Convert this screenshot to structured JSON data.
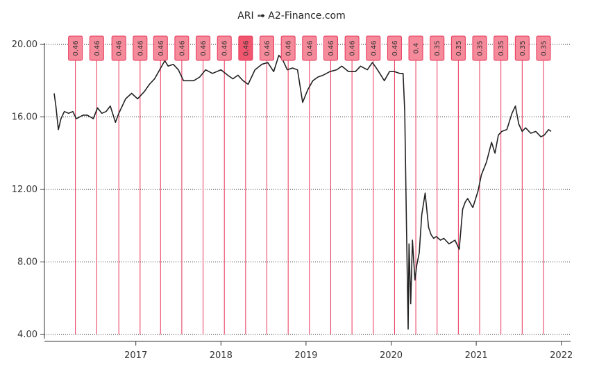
{
  "chart_data": {
    "type": "line",
    "title": "ARI ➟ A2-Finance.com",
    "y_ticks": [
      "4.00",
      "8.00",
      "12.00",
      "16.00",
      "20.00"
    ],
    "x_ticks": [
      "2017",
      "2018",
      "2019",
      "2020",
      "2021",
      "2022"
    ],
    "ylim": [
      4,
      20
    ],
    "xlim": [
      2016.04,
      2022.08
    ],
    "grid": "horizontal dotted",
    "line_color": "#222222",
    "dividend_line_color": "#e8345a",
    "dividend_box_color": "#f48a9a",
    "dividend_box_highlight_color": "#f0566e",
    "series": [
      {
        "x": [
          2016.04,
          2016.06,
          2016.09,
          2016.12,
          2016.16,
          2016.21,
          2016.26,
          2016.3,
          2016.38,
          2016.43,
          2016.5,
          2016.55,
          2016.6,
          2016.65,
          2016.7,
          2016.76,
          2016.8,
          2016.88,
          2016.95,
          2017.02,
          2017.1,
          2017.16,
          2017.22,
          2017.28,
          2017.34,
          2017.38,
          2017.44,
          2017.5,
          2017.56,
          2017.62,
          2017.68,
          2017.75,
          2017.82,
          2017.9,
          2018.0,
          2018.08,
          2018.14,
          2018.2,
          2018.26,
          2018.32,
          2018.4,
          2018.48,
          2018.55,
          2018.62,
          2018.68,
          2018.72,
          2018.78,
          2018.84,
          2018.9,
          2018.96,
          2019.02,
          2019.08,
          2019.14,
          2019.2,
          2019.28,
          2019.36,
          2019.42,
          2019.5,
          2019.58,
          2019.64,
          2019.72,
          2019.78,
          2019.84,
          2019.92,
          2019.98,
          2020.04,
          2020.1,
          2020.14,
          2020.16,
          2020.18,
          2020.2,
          2020.21,
          2020.23,
          2020.25,
          2020.28,
          2020.3,
          2020.33,
          2020.36,
          2020.4,
          2020.44,
          2020.47,
          2020.5,
          2020.53,
          2020.58,
          2020.62,
          2020.68,
          2020.75,
          2020.8,
          2020.84,
          2020.87,
          2020.9,
          2020.96,
          2021.02,
          2021.06,
          2021.12,
          2021.18,
          2021.22,
          2021.26,
          2021.3,
          2021.36,
          2021.42,
          2021.46,
          2021.5,
          2021.54,
          2021.58,
          2021.64,
          2021.7,
          2021.76,
          2021.8,
          2021.85,
          2021.88
        ],
        "y": [
          17.3,
          16.6,
          15.3,
          15.9,
          16.3,
          16.2,
          16.3,
          15.9,
          16.1,
          16.1,
          15.9,
          16.5,
          16.2,
          16.3,
          16.6,
          15.7,
          16.2,
          17.0,
          17.3,
          17.0,
          17.4,
          17.8,
          18.1,
          18.6,
          19.1,
          18.8,
          18.9,
          18.6,
          18.0,
          18.0,
          18.0,
          18.2,
          18.6,
          18.4,
          18.6,
          18.3,
          18.1,
          18.3,
          18.0,
          17.8,
          18.6,
          18.9,
          19.0,
          18.5,
          19.4,
          19.2,
          18.6,
          18.7,
          18.6,
          16.8,
          17.5,
          18.0,
          18.2,
          18.3,
          18.5,
          18.6,
          18.8,
          18.5,
          18.5,
          18.8,
          18.6,
          19.0,
          18.6,
          18.0,
          18.5,
          18.5,
          18.4,
          18.4,
          16.3,
          10.0,
          4.3,
          9.0,
          5.7,
          9.2,
          7.0,
          7.8,
          8.5,
          10.6,
          11.8,
          9.9,
          9.5,
          9.3,
          9.4,
          9.2,
          9.3,
          9.0,
          9.2,
          8.7,
          10.9,
          11.3,
          11.5,
          11.0,
          11.9,
          12.8,
          13.5,
          14.6,
          14.0,
          15.0,
          15.2,
          15.3,
          16.2,
          16.6,
          15.6,
          15.2,
          15.4,
          15.1,
          15.2,
          14.9,
          15.0,
          15.3,
          15.2
        ]
      }
    ],
    "dividends": [
      {
        "x": 2016.29,
        "label": "0.46"
      },
      {
        "x": 2016.54,
        "label": "0.46"
      },
      {
        "x": 2016.8,
        "label": "0.46"
      },
      {
        "x": 2017.05,
        "label": "0.46"
      },
      {
        "x": 2017.29,
        "label": "0.46"
      },
      {
        "x": 2017.54,
        "label": "0.46"
      },
      {
        "x": 2017.79,
        "label": "0.46"
      },
      {
        "x": 2018.04,
        "label": "0.46"
      },
      {
        "x": 2018.29,
        "label": "0.46",
        "highlight": true
      },
      {
        "x": 2018.54,
        "label": "0.46"
      },
      {
        "x": 2018.79,
        "label": "0.46"
      },
      {
        "x": 2019.04,
        "label": "0.46"
      },
      {
        "x": 2019.29,
        "label": "0.46"
      },
      {
        "x": 2019.54,
        "label": "0.46"
      },
      {
        "x": 2019.79,
        "label": "0.46"
      },
      {
        "x": 2020.04,
        "label": "0.46"
      },
      {
        "x": 2020.29,
        "label": "0.4"
      },
      {
        "x": 2020.54,
        "label": "0.35"
      },
      {
        "x": 2020.79,
        "label": "0.35"
      },
      {
        "x": 2021.04,
        "label": "0.35"
      },
      {
        "x": 2021.29,
        "label": "0.35"
      },
      {
        "x": 2021.54,
        "label": "0.35"
      },
      {
        "x": 2021.79,
        "label": "0.35"
      }
    ]
  }
}
